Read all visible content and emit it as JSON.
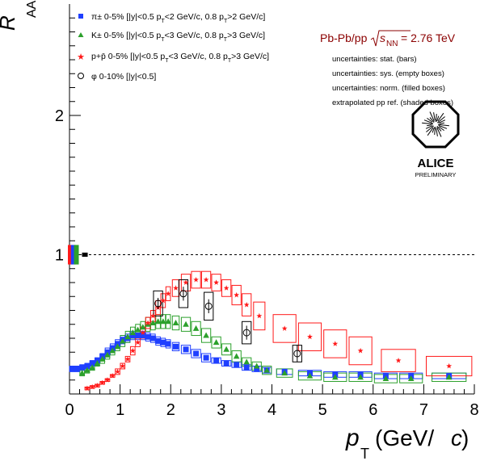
{
  "chart_data": {
    "type": "scatter",
    "xlabel_main": "p",
    "xlabel_sub": "T",
    "xlabel_unit": "(GeV/",
    "xlabel_c": "c",
    "xlabel_close": ")",
    "ylabel_main": "R",
    "ylabel_sub": "AA",
    "xlim": [
      0,
      8
    ],
    "ylim": [
      0,
      2.8
    ],
    "x_ticks": [
      "0",
      "1",
      "2",
      "3",
      "4",
      "5",
      "6",
      "7",
      "8"
    ],
    "y_ticks": [
      "1",
      "2"
    ],
    "reference_line": 1,
    "colors": {
      "pion": "#1f3fff",
      "kaon": "#2ca02c",
      "proton": "#ff1a1a",
      "phi": "#000000",
      "header": "#8b0000"
    },
    "legend": [
      {
        "key": "pion",
        "marker": "square",
        "prefix": "π± 0-5% [|y|<0.5 p",
        "sub1": "T",
        "mid": "<2 GeV/c, 0.8 p",
        "sub2": "T",
        "suffix": ">2 GeV/c]"
      },
      {
        "key": "kaon",
        "marker": "triangle",
        "prefix": "K± 0-5% [|y|<0.5 p",
        "sub1": "T",
        "mid": "<3 GeV/c, 0.8 p",
        "sub2": "T",
        "suffix": ">3 GeV/c]"
      },
      {
        "key": "proton",
        "marker": "star",
        "prefix": "p+p̄ 0-5% [|y|<0.5 p",
        "sub1": "T",
        "mid": "<3 GeV/c, 0.8 p",
        "sub2": "T",
        "suffix": ">3 GeV/c]"
      },
      {
        "key": "phi",
        "marker": "circle",
        "prefix": "φ 0-10% [|y|<0.5]",
        "sub1": "",
        "mid": "",
        "sub2": "",
        "suffix": ""
      }
    ],
    "header": {
      "system": "Pb-Pb/pp",
      "sqrt_label": "s",
      "sqrt_sub": "NN",
      "energy": " = 2.76 TeV",
      "notes": [
        "uncertainties: stat. (bars)",
        "uncertainties: sys. (empty boxes)",
        "uncertainties: norm. (filled boxes)",
        "extrapolated pp ref. (shaded boxes)"
      ]
    },
    "logo": {
      "name": "ALICE",
      "sub": "PRELIMINARY"
    },
    "series": [
      {
        "name": "pion",
        "marker": "square",
        "color": "#1f3fff",
        "x": [
          0.05,
          0.15,
          0.25,
          0.35,
          0.45,
          0.55,
          0.65,
          0.75,
          0.85,
          0.95,
          1.05,
          1.15,
          1.25,
          1.35,
          1.45,
          1.55,
          1.65,
          1.75,
          1.85,
          1.95,
          2.1,
          2.3,
          2.5,
          2.7,
          2.9,
          3.1,
          3.3,
          3.5,
          3.7,
          3.9,
          4.25,
          4.75,
          5.25,
          5.75,
          6.25,
          6.75,
          7.5
        ],
        "y": [
          0.18,
          0.18,
          0.19,
          0.2,
          0.22,
          0.24,
          0.27,
          0.3,
          0.33,
          0.36,
          0.39,
          0.4,
          0.42,
          0.42,
          0.42,
          0.41,
          0.4,
          0.38,
          0.37,
          0.36,
          0.34,
          0.32,
          0.29,
          0.26,
          0.24,
          0.22,
          0.21,
          0.19,
          0.18,
          0.17,
          0.16,
          0.15,
          0.14,
          0.14,
          0.13,
          0.13,
          0.13
        ],
        "sys": [
          0.02,
          0.02,
          0.02,
          0.02,
          0.02,
          0.02,
          0.02,
          0.03,
          0.03,
          0.03,
          0.03,
          0.03,
          0.03,
          0.03,
          0.03,
          0.03,
          0.03,
          0.03,
          0.03,
          0.03,
          0.03,
          0.03,
          0.03,
          0.03,
          0.02,
          0.02,
          0.02,
          0.02,
          0.02,
          0.02,
          0.02,
          0.02,
          0.02,
          0.02,
          0.02,
          0.02,
          0.02
        ]
      },
      {
        "name": "kaon",
        "marker": "triangle",
        "color": "#2ca02c",
        "x": [
          0.25,
          0.35,
          0.45,
          0.55,
          0.65,
          0.75,
          0.85,
          0.95,
          1.05,
          1.15,
          1.25,
          1.35,
          1.45,
          1.55,
          1.65,
          1.75,
          1.85,
          1.95,
          2.1,
          2.3,
          2.5,
          2.7,
          2.9,
          3.1,
          3.3,
          3.5,
          3.7,
          3.9,
          4.25,
          4.75,
          5.25,
          5.75,
          6.25,
          6.75,
          7.5
        ],
        "y": [
          0.15,
          0.17,
          0.19,
          0.22,
          0.25,
          0.28,
          0.31,
          0.34,
          0.38,
          0.41,
          0.44,
          0.46,
          0.48,
          0.5,
          0.51,
          0.52,
          0.52,
          0.52,
          0.51,
          0.5,
          0.47,
          0.42,
          0.37,
          0.32,
          0.27,
          0.23,
          0.2,
          0.17,
          0.15,
          0.13,
          0.12,
          0.12,
          0.11,
          0.11,
          0.12
        ],
        "sys": [
          0.02,
          0.02,
          0.02,
          0.02,
          0.03,
          0.03,
          0.03,
          0.03,
          0.04,
          0.04,
          0.04,
          0.04,
          0.04,
          0.05,
          0.05,
          0.05,
          0.05,
          0.05,
          0.05,
          0.05,
          0.05,
          0.05,
          0.04,
          0.04,
          0.04,
          0.03,
          0.03,
          0.03,
          0.03,
          0.03,
          0.03,
          0.03,
          0.03,
          0.03,
          0.03
        ]
      },
      {
        "name": "proton",
        "marker": "star",
        "color": "#ff1a1a",
        "x": [
          0.35,
          0.45,
          0.55,
          0.65,
          0.75,
          0.85,
          0.95,
          1.05,
          1.15,
          1.25,
          1.35,
          1.45,
          1.55,
          1.65,
          1.75,
          1.85,
          1.95,
          2.1,
          2.3,
          2.5,
          2.7,
          2.9,
          3.1,
          3.3,
          3.5,
          3.75,
          4.25,
          4.75,
          5.25,
          5.75,
          6.5,
          7.5
        ],
        "y": [
          0.04,
          0.05,
          0.06,
          0.08,
          0.1,
          0.13,
          0.16,
          0.2,
          0.25,
          0.31,
          0.37,
          0.44,
          0.51,
          0.56,
          0.62,
          0.67,
          0.72,
          0.76,
          0.8,
          0.82,
          0.82,
          0.8,
          0.76,
          0.71,
          0.64,
          0.56,
          0.47,
          0.41,
          0.36,
          0.31,
          0.24,
          0.2
        ],
        "sys": [
          0.01,
          0.01,
          0.01,
          0.01,
          0.01,
          0.01,
          0.02,
          0.02,
          0.02,
          0.03,
          0.03,
          0.04,
          0.04,
          0.04,
          0.05,
          0.05,
          0.05,
          0.06,
          0.06,
          0.06,
          0.06,
          0.06,
          0.06,
          0.07,
          0.08,
          0.1,
          0.1,
          0.1,
          0.1,
          0.1,
          0.08,
          0.07
        ]
      },
      {
        "name": "phi",
        "marker": "circle",
        "color": "#000000",
        "x": [
          1.75,
          2.25,
          2.75,
          3.5,
          4.5
        ],
        "y": [
          0.65,
          0.72,
          0.63,
          0.44,
          0.29
        ],
        "stat": [
          0.04,
          0.05,
          0.05,
          0.05,
          0.06
        ],
        "sys": [
          0.09,
          0.1,
          0.1,
          0.08,
          0.06
        ]
      }
    ]
  }
}
